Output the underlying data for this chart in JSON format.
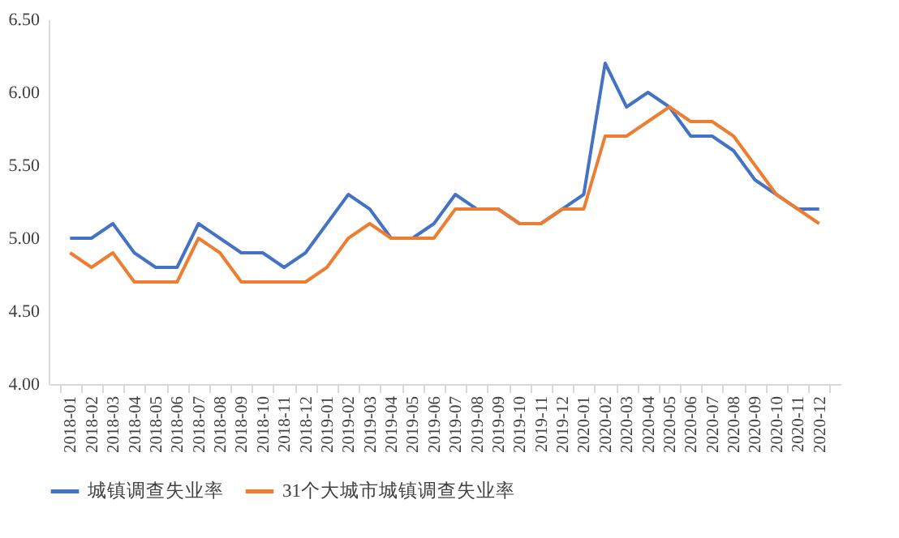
{
  "chart_data": {
    "type": "line",
    "categories": [
      "2018-01",
      "2018-02",
      "2018-03",
      "2018-04",
      "2018-05",
      "2018-06",
      "2018-07",
      "2018-08",
      "2018-09",
      "2018-10",
      "2018-11",
      "2018-12",
      "2019-01",
      "2019-02",
      "2019-03",
      "2019-04",
      "2019-05",
      "2019-06",
      "2019-07",
      "2019-08",
      "2019-09",
      "2019-10",
      "2019-11",
      "2019-12",
      "2020-01",
      "2020-02",
      "2020-03",
      "2020-04",
      "2020-05",
      "2020-06",
      "2020-07",
      "2020-08",
      "2020-09",
      "2020-10",
      "2020-11",
      "2020-12"
    ],
    "series": [
      {
        "name": "城镇调查失业率",
        "color": "#4472c4",
        "values": [
          5.0,
          5.0,
          5.1,
          4.9,
          4.8,
          4.8,
          5.1,
          5.0,
          4.9,
          4.9,
          4.8,
          4.9,
          5.1,
          5.3,
          5.2,
          5.0,
          5.0,
          5.1,
          5.3,
          5.2,
          5.2,
          5.1,
          5.1,
          5.2,
          5.3,
          6.2,
          5.9,
          6.0,
          5.9,
          5.7,
          5.7,
          5.6,
          5.4,
          5.3,
          5.2,
          5.2
        ]
      },
      {
        "name": "31个大城市城镇调查失业率",
        "color": "#ed7d31",
        "values": [
          4.9,
          4.8,
          4.9,
          4.7,
          4.7,
          4.7,
          5.0,
          4.9,
          4.7,
          4.7,
          4.7,
          4.7,
          4.8,
          5.0,
          5.1,
          5.0,
          5.0,
          5.0,
          5.2,
          5.2,
          5.2,
          5.1,
          5.1,
          5.2,
          5.2,
          5.7,
          5.7,
          5.8,
          5.9,
          5.8,
          5.8,
          5.7,
          5.5,
          5.3,
          5.2,
          5.1
        ]
      }
    ],
    "ylim": [
      4.0,
      6.5
    ],
    "yticks": [
      {
        "value": 4.0,
        "label": "4.00"
      },
      {
        "value": 4.5,
        "label": "4.50"
      },
      {
        "value": 5.0,
        "label": "5.00"
      },
      {
        "value": 5.5,
        "label": "5.50"
      },
      {
        "value": 6.0,
        "label": "6.00"
      },
      {
        "value": 6.5,
        "label": "6.50"
      }
    ],
    "grid": false,
    "legend": "bottom",
    "marker": "none",
    "line_style": "solid"
  }
}
